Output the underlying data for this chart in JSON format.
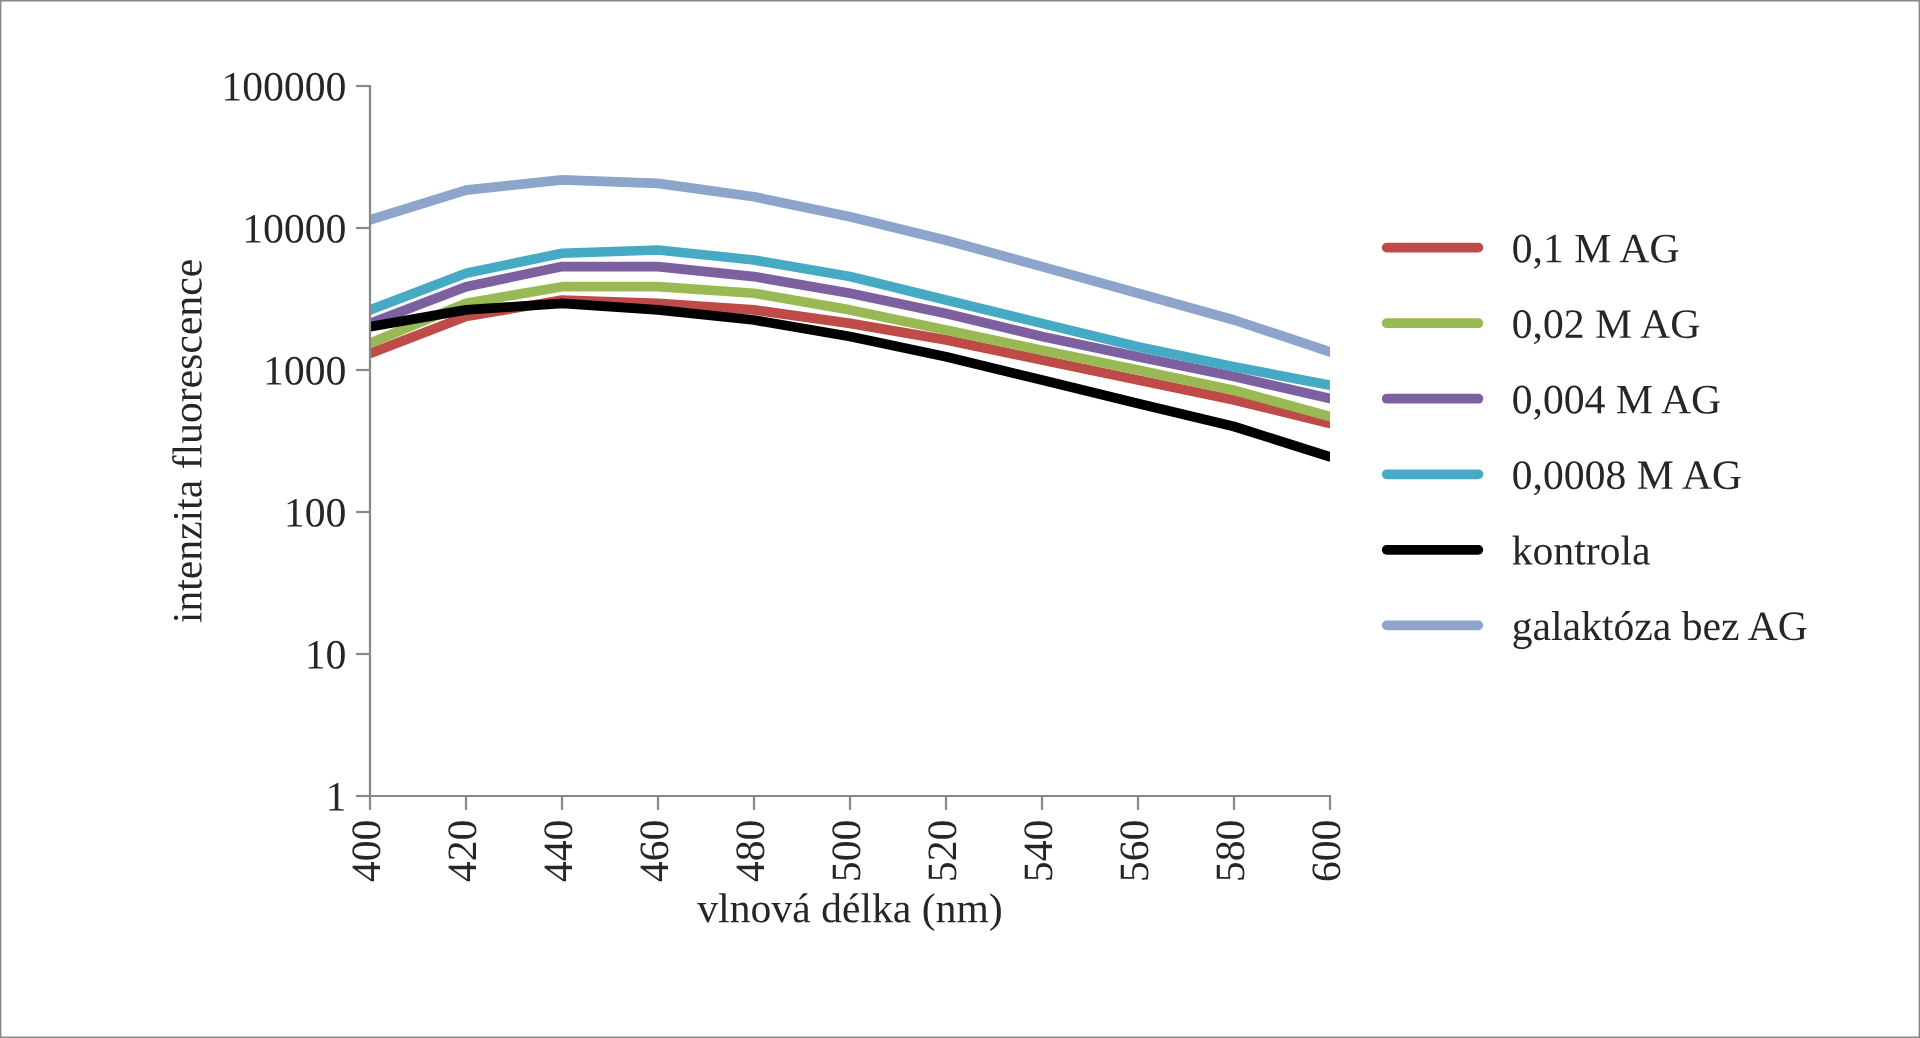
{
  "chart_data": {
    "type": "line",
    "xlabel": "vlnová délka (nm)",
    "ylabel": "intenzita fluorescence",
    "x": [
      400,
      420,
      440,
      460,
      480,
      500,
      520,
      540,
      560,
      580,
      600
    ],
    "xlim": [
      400,
      600
    ],
    "xticks": [
      400,
      420,
      440,
      460,
      480,
      500,
      520,
      540,
      560,
      580,
      600
    ],
    "ylim": [
      1,
      100000
    ],
    "yticks": [
      1,
      10,
      100,
      1000,
      10000,
      100000
    ],
    "log": "y",
    "grid": false,
    "legend": "right",
    "marker": "none",
    "line_style": "solid",
    "series": [
      {
        "name": "0,1 M AG",
        "color": "#be4b48",
        "values": [
          1310,
          2380,
          3110,
          2950,
          2650,
          2130,
          1630,
          1175,
          850,
          615,
          420
        ]
      },
      {
        "name": "0,02 M AG",
        "color": "#98b954",
        "values": [
          1540,
          2950,
          3860,
          3860,
          3470,
          2650,
          1910,
          1380,
          1000,
          720,
          470
        ]
      },
      {
        "name": "0,004 M AG",
        "color": "#7d60a0",
        "values": [
          2130,
          3860,
          5350,
          5350,
          4550,
          3470,
          2500,
          1720,
          1240,
          900,
          630
        ]
      },
      {
        "name": "0,0008 M AG",
        "color": "#46aac5",
        "values": [
          2650,
          4800,
          6640,
          7000,
          5950,
          4550,
          3110,
          2130,
          1460,
          1055,
          780
        ]
      },
      {
        "name": "kontrola",
        "color": "#000000",
        "values": [
          2020,
          2650,
          2950,
          2650,
          2250,
          1720,
          1240,
          850,
          580,
          400,
          245
        ]
      },
      {
        "name": "galaktóza bez AG",
        "color": "#8ea5cb",
        "values": [
          11400,
          18500,
          21800,
          20600,
          16600,
          12000,
          8200,
          5350,
          3470,
          2250,
          1340
        ]
      }
    ]
  }
}
